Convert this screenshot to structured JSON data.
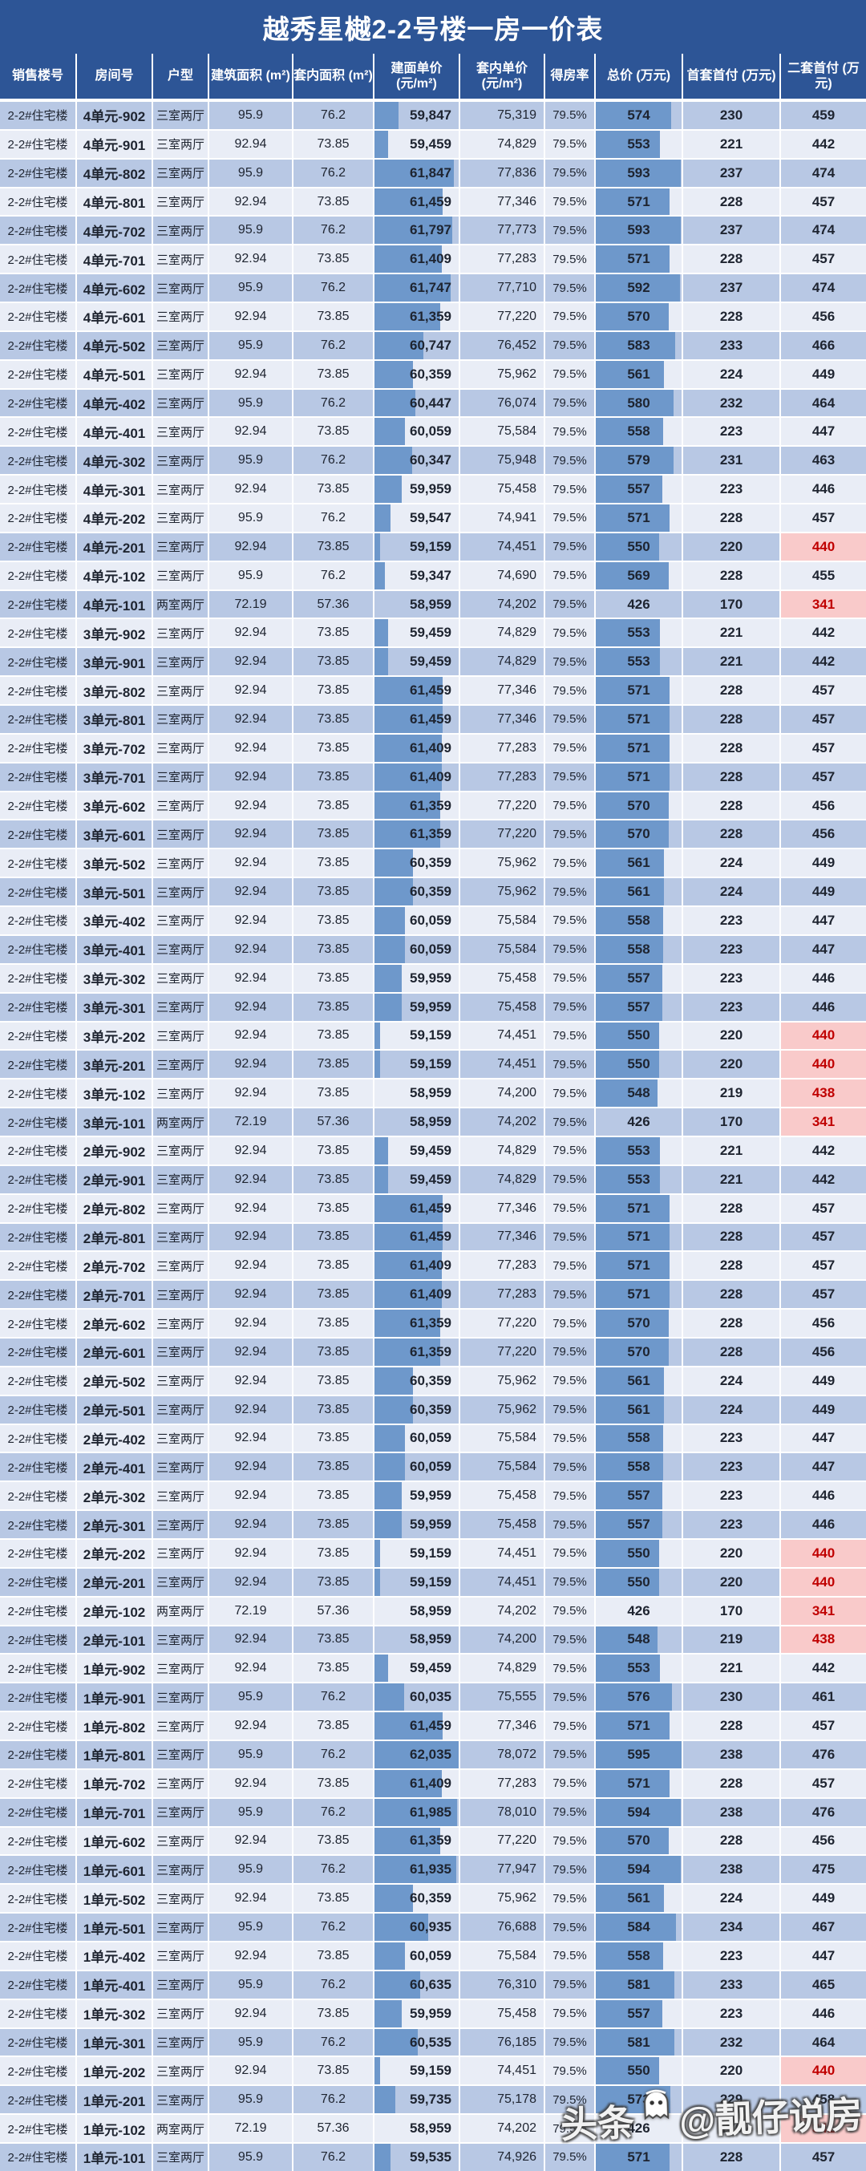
{
  "title": "越秀星樾2-2号楼一房一价表",
  "watermark": {
    "platform": "头条",
    "handle": "@靓仔说房",
    "icon": "ghost-icon"
  },
  "colors": {
    "header_bg": "#2d5596",
    "row_dark": "#b8c8e4",
    "row_light": "#e9edf6",
    "bar_blue": "#6e98cb",
    "highlight_bg": "#f9caca",
    "highlight_text": "#c00000",
    "text": "#1e2430",
    "grid": "#ffffff"
  },
  "table": {
    "columns": [
      {
        "key": "building",
        "label": "销售楼号"
      },
      {
        "key": "room",
        "label": "房间号"
      },
      {
        "key": "layout",
        "label": "户型"
      },
      {
        "key": "area",
        "label": "建筑面积 (m²)"
      },
      {
        "key": "inner_area",
        "label": "套内面积 (m²)"
      },
      {
        "key": "unit_price",
        "label": "建面单价",
        "sub": "(元/m²)"
      },
      {
        "key": "inner_price",
        "label": "套内单价",
        "sub": "(元/m²)"
      },
      {
        "key": "efficiency",
        "label": "得房率"
      },
      {
        "key": "total",
        "label": "总价 (万元)"
      },
      {
        "key": "down_first",
        "label": "首套首付 (万元)"
      },
      {
        "key": "down_second",
        "label": "二套首付 (万元)"
      }
    ],
    "bar_scales": {
      "unit_price": {
        "min": 58959,
        "max": 62035
      },
      "total": {
        "min": 426,
        "max": 595
      }
    },
    "second_down_highlight_max": 440,
    "rows": [
      [
        "2-2#住宅楼",
        "4单元-902",
        "三室两厅",
        "95.9",
        "76.2",
        "59,847",
        "75,319",
        "79.5%",
        "574",
        "230",
        "459"
      ],
      [
        "2-2#住宅楼",
        "4单元-901",
        "三室两厅",
        "92.94",
        "73.85",
        "59,459",
        "74,829",
        "79.5%",
        "553",
        "221",
        "442"
      ],
      [
        "2-2#住宅楼",
        "4单元-802",
        "三室两厅",
        "95.9",
        "76.2",
        "61,847",
        "77,836",
        "79.5%",
        "593",
        "237",
        "474"
      ],
      [
        "2-2#住宅楼",
        "4单元-801",
        "三室两厅",
        "92.94",
        "73.85",
        "61,459",
        "77,346",
        "79.5%",
        "571",
        "228",
        "457"
      ],
      [
        "2-2#住宅楼",
        "4单元-702",
        "三室两厅",
        "95.9",
        "76.2",
        "61,797",
        "77,773",
        "79.5%",
        "593",
        "237",
        "474"
      ],
      [
        "2-2#住宅楼",
        "4单元-701",
        "三室两厅",
        "92.94",
        "73.85",
        "61,409",
        "77,283",
        "79.5%",
        "571",
        "228",
        "457"
      ],
      [
        "2-2#住宅楼",
        "4单元-602",
        "三室两厅",
        "95.9",
        "76.2",
        "61,747",
        "77,710",
        "79.5%",
        "592",
        "237",
        "474"
      ],
      [
        "2-2#住宅楼",
        "4单元-601",
        "三室两厅",
        "92.94",
        "73.85",
        "61,359",
        "77,220",
        "79.5%",
        "570",
        "228",
        "456"
      ],
      [
        "2-2#住宅楼",
        "4单元-502",
        "三室两厅",
        "95.9",
        "76.2",
        "60,747",
        "76,452",
        "79.5%",
        "583",
        "233",
        "466"
      ],
      [
        "2-2#住宅楼",
        "4单元-501",
        "三室两厅",
        "92.94",
        "73.85",
        "60,359",
        "75,962",
        "79.5%",
        "561",
        "224",
        "449"
      ],
      [
        "2-2#住宅楼",
        "4单元-402",
        "三室两厅",
        "95.9",
        "76.2",
        "60,447",
        "76,074",
        "79.5%",
        "580",
        "232",
        "464"
      ],
      [
        "2-2#住宅楼",
        "4单元-401",
        "三室两厅",
        "92.94",
        "73.85",
        "60,059",
        "75,584",
        "79.5%",
        "558",
        "223",
        "447"
      ],
      [
        "2-2#住宅楼",
        "4单元-302",
        "三室两厅",
        "95.9",
        "76.2",
        "60,347",
        "75,948",
        "79.5%",
        "579",
        "231",
        "463"
      ],
      [
        "2-2#住宅楼",
        "4单元-301",
        "三室两厅",
        "92.94",
        "73.85",
        "59,959",
        "75,458",
        "79.5%",
        "557",
        "223",
        "446"
      ],
      [
        "2-2#住宅楼",
        "4单元-202",
        "三室两厅",
        "95.9",
        "76.2",
        "59,547",
        "74,941",
        "79.5%",
        "571",
        "228",
        "457"
      ],
      [
        "2-2#住宅楼",
        "4单元-201",
        "三室两厅",
        "92.94",
        "73.85",
        "59,159",
        "74,451",
        "79.5%",
        "550",
        "220",
        "440"
      ],
      [
        "2-2#住宅楼",
        "4单元-102",
        "三室两厅",
        "95.9",
        "76.2",
        "59,347",
        "74,690",
        "79.5%",
        "569",
        "228",
        "455"
      ],
      [
        "2-2#住宅楼",
        "4单元-101",
        "两室两厅",
        "72.19",
        "57.36",
        "58,959",
        "74,202",
        "79.5%",
        "426",
        "170",
        "341"
      ],
      [
        "2-2#住宅楼",
        "3单元-902",
        "三室两厅",
        "92.94",
        "73.85",
        "59,459",
        "74,829",
        "79.5%",
        "553",
        "221",
        "442"
      ],
      [
        "2-2#住宅楼",
        "3单元-901",
        "三室两厅",
        "92.94",
        "73.85",
        "59,459",
        "74,829",
        "79.5%",
        "553",
        "221",
        "442"
      ],
      [
        "2-2#住宅楼",
        "3单元-802",
        "三室两厅",
        "92.94",
        "73.85",
        "61,459",
        "77,346",
        "79.5%",
        "571",
        "228",
        "457"
      ],
      [
        "2-2#住宅楼",
        "3单元-801",
        "三室两厅",
        "92.94",
        "73.85",
        "61,459",
        "77,346",
        "79.5%",
        "571",
        "228",
        "457"
      ],
      [
        "2-2#住宅楼",
        "3单元-702",
        "三室两厅",
        "92.94",
        "73.85",
        "61,409",
        "77,283",
        "79.5%",
        "571",
        "228",
        "457"
      ],
      [
        "2-2#住宅楼",
        "3单元-701",
        "三室两厅",
        "92.94",
        "73.85",
        "61,409",
        "77,283",
        "79.5%",
        "571",
        "228",
        "457"
      ],
      [
        "2-2#住宅楼",
        "3单元-602",
        "三室两厅",
        "92.94",
        "73.85",
        "61,359",
        "77,220",
        "79.5%",
        "570",
        "228",
        "456"
      ],
      [
        "2-2#住宅楼",
        "3单元-601",
        "三室两厅",
        "92.94",
        "73.85",
        "61,359",
        "77,220",
        "79.5%",
        "570",
        "228",
        "456"
      ],
      [
        "2-2#住宅楼",
        "3单元-502",
        "三室两厅",
        "92.94",
        "73.85",
        "60,359",
        "75,962",
        "79.5%",
        "561",
        "224",
        "449"
      ],
      [
        "2-2#住宅楼",
        "3单元-501",
        "三室两厅",
        "92.94",
        "73.85",
        "60,359",
        "75,962",
        "79.5%",
        "561",
        "224",
        "449"
      ],
      [
        "2-2#住宅楼",
        "3单元-402",
        "三室两厅",
        "92.94",
        "73.85",
        "60,059",
        "75,584",
        "79.5%",
        "558",
        "223",
        "447"
      ],
      [
        "2-2#住宅楼",
        "3单元-401",
        "三室两厅",
        "92.94",
        "73.85",
        "60,059",
        "75,584",
        "79.5%",
        "558",
        "223",
        "447"
      ],
      [
        "2-2#住宅楼",
        "3单元-302",
        "三室两厅",
        "92.94",
        "73.85",
        "59,959",
        "75,458",
        "79.5%",
        "557",
        "223",
        "446"
      ],
      [
        "2-2#住宅楼",
        "3单元-301",
        "三室两厅",
        "92.94",
        "73.85",
        "59,959",
        "75,458",
        "79.5%",
        "557",
        "223",
        "446"
      ],
      [
        "2-2#住宅楼",
        "3单元-202",
        "三室两厅",
        "92.94",
        "73.85",
        "59,159",
        "74,451",
        "79.5%",
        "550",
        "220",
        "440"
      ],
      [
        "2-2#住宅楼",
        "3单元-201",
        "三室两厅",
        "92.94",
        "73.85",
        "59,159",
        "74,451",
        "79.5%",
        "550",
        "220",
        "440"
      ],
      [
        "2-2#住宅楼",
        "3单元-102",
        "三室两厅",
        "92.94",
        "73.85",
        "58,959",
        "74,200",
        "79.5%",
        "548",
        "219",
        "438"
      ],
      [
        "2-2#住宅楼",
        "3单元-101",
        "两室两厅",
        "72.19",
        "57.36",
        "58,959",
        "74,202",
        "79.5%",
        "426",
        "170",
        "341"
      ],
      [
        "2-2#住宅楼",
        "2单元-902",
        "三室两厅",
        "92.94",
        "73.85",
        "59,459",
        "74,829",
        "79.5%",
        "553",
        "221",
        "442"
      ],
      [
        "2-2#住宅楼",
        "2单元-901",
        "三室两厅",
        "92.94",
        "73.85",
        "59,459",
        "74,829",
        "79.5%",
        "553",
        "221",
        "442"
      ],
      [
        "2-2#住宅楼",
        "2单元-802",
        "三室两厅",
        "92.94",
        "73.85",
        "61,459",
        "77,346",
        "79.5%",
        "571",
        "228",
        "457"
      ],
      [
        "2-2#住宅楼",
        "2单元-801",
        "三室两厅",
        "92.94",
        "73.85",
        "61,459",
        "77,346",
        "79.5%",
        "571",
        "228",
        "457"
      ],
      [
        "2-2#住宅楼",
        "2单元-702",
        "三室两厅",
        "92.94",
        "73.85",
        "61,409",
        "77,283",
        "79.5%",
        "571",
        "228",
        "457"
      ],
      [
        "2-2#住宅楼",
        "2单元-701",
        "三室两厅",
        "92.94",
        "73.85",
        "61,409",
        "77,283",
        "79.5%",
        "571",
        "228",
        "457"
      ],
      [
        "2-2#住宅楼",
        "2单元-602",
        "三室两厅",
        "92.94",
        "73.85",
        "61,359",
        "77,220",
        "79.5%",
        "570",
        "228",
        "456"
      ],
      [
        "2-2#住宅楼",
        "2单元-601",
        "三室两厅",
        "92.94",
        "73.85",
        "61,359",
        "77,220",
        "79.5%",
        "570",
        "228",
        "456"
      ],
      [
        "2-2#住宅楼",
        "2单元-502",
        "三室两厅",
        "92.94",
        "73.85",
        "60,359",
        "75,962",
        "79.5%",
        "561",
        "224",
        "449"
      ],
      [
        "2-2#住宅楼",
        "2单元-501",
        "三室两厅",
        "92.94",
        "73.85",
        "60,359",
        "75,962",
        "79.5%",
        "561",
        "224",
        "449"
      ],
      [
        "2-2#住宅楼",
        "2单元-402",
        "三室两厅",
        "92.94",
        "73.85",
        "60,059",
        "75,584",
        "79.5%",
        "558",
        "223",
        "447"
      ],
      [
        "2-2#住宅楼",
        "2单元-401",
        "三室两厅",
        "92.94",
        "73.85",
        "60,059",
        "75,584",
        "79.5%",
        "558",
        "223",
        "447"
      ],
      [
        "2-2#住宅楼",
        "2单元-302",
        "三室两厅",
        "92.94",
        "73.85",
        "59,959",
        "75,458",
        "79.5%",
        "557",
        "223",
        "446"
      ],
      [
        "2-2#住宅楼",
        "2单元-301",
        "三室两厅",
        "92.94",
        "73.85",
        "59,959",
        "75,458",
        "79.5%",
        "557",
        "223",
        "446"
      ],
      [
        "2-2#住宅楼",
        "2单元-202",
        "三室两厅",
        "92.94",
        "73.85",
        "59,159",
        "74,451",
        "79.5%",
        "550",
        "220",
        "440"
      ],
      [
        "2-2#住宅楼",
        "2单元-201",
        "三室两厅",
        "92.94",
        "73.85",
        "59,159",
        "74,451",
        "79.5%",
        "550",
        "220",
        "440"
      ],
      [
        "2-2#住宅楼",
        "2单元-102",
        "两室两厅",
        "72.19",
        "57.36",
        "58,959",
        "74,202",
        "79.5%",
        "426",
        "170",
        "341"
      ],
      [
        "2-2#住宅楼",
        "2单元-101",
        "三室两厅",
        "92.94",
        "73.85",
        "58,959",
        "74,200",
        "79.5%",
        "548",
        "219",
        "438"
      ],
      [
        "2-2#住宅楼",
        "1单元-902",
        "三室两厅",
        "92.94",
        "73.85",
        "59,459",
        "74,829",
        "79.5%",
        "553",
        "221",
        "442"
      ],
      [
        "2-2#住宅楼",
        "1单元-901",
        "三室两厅",
        "95.9",
        "76.2",
        "60,035",
        "75,555",
        "79.5%",
        "576",
        "230",
        "461"
      ],
      [
        "2-2#住宅楼",
        "1单元-802",
        "三室两厅",
        "92.94",
        "73.85",
        "61,459",
        "77,346",
        "79.5%",
        "571",
        "228",
        "457"
      ],
      [
        "2-2#住宅楼",
        "1单元-801",
        "三室两厅",
        "95.9",
        "76.2",
        "62,035",
        "78,072",
        "79.5%",
        "595",
        "238",
        "476"
      ],
      [
        "2-2#住宅楼",
        "1单元-702",
        "三室两厅",
        "92.94",
        "73.85",
        "61,409",
        "77,283",
        "79.5%",
        "571",
        "228",
        "457"
      ],
      [
        "2-2#住宅楼",
        "1单元-701",
        "三室两厅",
        "95.9",
        "76.2",
        "61,985",
        "78,010",
        "79.5%",
        "594",
        "238",
        "476"
      ],
      [
        "2-2#住宅楼",
        "1单元-602",
        "三室两厅",
        "92.94",
        "73.85",
        "61,359",
        "77,220",
        "79.5%",
        "570",
        "228",
        "456"
      ],
      [
        "2-2#住宅楼",
        "1单元-601",
        "三室两厅",
        "95.9",
        "76.2",
        "61,935",
        "77,947",
        "79.5%",
        "594",
        "238",
        "475"
      ],
      [
        "2-2#住宅楼",
        "1单元-502",
        "三室两厅",
        "92.94",
        "73.85",
        "60,359",
        "75,962",
        "79.5%",
        "561",
        "224",
        "449"
      ],
      [
        "2-2#住宅楼",
        "1单元-501",
        "三室两厅",
        "95.9",
        "76.2",
        "60,935",
        "76,688",
        "79.5%",
        "584",
        "234",
        "467"
      ],
      [
        "2-2#住宅楼",
        "1单元-402",
        "三室两厅",
        "92.94",
        "73.85",
        "60,059",
        "75,584",
        "79.5%",
        "558",
        "223",
        "447"
      ],
      [
        "2-2#住宅楼",
        "1单元-401",
        "三室两厅",
        "95.9",
        "76.2",
        "60,635",
        "76,310",
        "79.5%",
        "581",
        "233",
        "465"
      ],
      [
        "2-2#住宅楼",
        "1单元-302",
        "三室两厅",
        "92.94",
        "73.85",
        "59,959",
        "75,458",
        "79.5%",
        "557",
        "223",
        "446"
      ],
      [
        "2-2#住宅楼",
        "1单元-301",
        "三室两厅",
        "95.9",
        "76.2",
        "60,535",
        "76,185",
        "79.5%",
        "581",
        "232",
        "464"
      ],
      [
        "2-2#住宅楼",
        "1单元-202",
        "三室两厅",
        "92.94",
        "73.85",
        "59,159",
        "74,451",
        "79.5%",
        "550",
        "220",
        "440"
      ],
      [
        "2-2#住宅楼",
        "1单元-201",
        "三室两厅",
        "95.9",
        "76.2",
        "59,735",
        "75,178",
        "79.5%",
        "573",
        "229",
        "458"
      ],
      [
        "2-2#住宅楼",
        "1单元-102",
        "两室两厅",
        "72.19",
        "57.36",
        "58,959",
        "74,202",
        "79.5%",
        "426",
        "170",
        "341"
      ],
      [
        "2-2#住宅楼",
        "1单元-101",
        "三室两厅",
        "95.9",
        "76.2",
        "59,535",
        "74,926",
        "79.5%",
        "571",
        "228",
        "457"
      ]
    ]
  }
}
